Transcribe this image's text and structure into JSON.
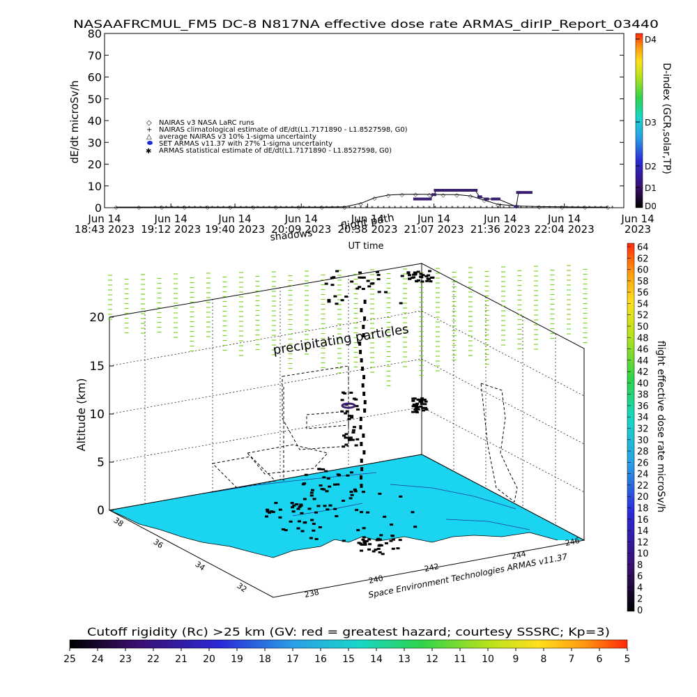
{
  "chart_data": [
    {
      "type": "line",
      "title": "NASAAFRCMUL_FM5 DC-8   N817NA effective dose rate ARMAS_dirIP_Report_03440",
      "xlabel": "UT time",
      "ylabel": "dE/dt microSv/h",
      "ylim": [
        0,
        80
      ],
      "yticks": [
        "0",
        "10",
        "20",
        "30",
        "40",
        "50",
        "60",
        "70",
        "80"
      ],
      "xtick_lines": [
        [
          "Jun 14",
          "18:43 2023"
        ],
        [
          "Jun 14",
          "19:12 2023"
        ],
        [
          "Jun 14",
          "19:40 2023"
        ],
        [
          "Jun 14",
          "20:09 2023"
        ],
        [
          "Jun 14",
          "20:38 2023"
        ],
        [
          "Jun 14",
          "21:07 2023"
        ],
        [
          "Jun 14",
          "21:36 2023"
        ],
        [
          "Jun 14",
          "22:04 2023"
        ],
        [
          "Jun 14",
          "2023"
        ]
      ],
      "xticks_minutes": [
        0,
        29,
        57,
        86,
        115,
        144,
        173,
        201
      ],
      "x_range_minutes": [
        0,
        227
      ],
      "right_axis_label": "D-index (GCR,solar,TP)",
      "right_axis_ticks": [
        "D4",
        "D3",
        "D2",
        "D1",
        "D0"
      ],
      "legend": [
        "NAIRAS v3 NASA LaRC runs",
        "NAIRAS climatological estimate of dE/dt(L1.7171890 - L1.8527598, G0)",
        "average NAIRAS v3 10% 1-sigma uncertainty",
        "SET ARMAS v11.37 with 27% 1-sigma uncertainty",
        "ARMAS statistical estimate of dE/dt(L1.7171890 - L1.8527598, G0)"
      ],
      "series": [
        {
          "name": "NAIRAS v3 NASA LaRC runs",
          "x": [
            5,
            15,
            25,
            35,
            45,
            55,
            65,
            75,
            85,
            95,
            105,
            112,
            118,
            124,
            130,
            136,
            142,
            148,
            154,
            160,
            166,
            172,
            180,
            190,
            200,
            210,
            220
          ],
          "y": [
            0.3,
            0.3,
            0.3,
            0.3,
            0.3,
            0.3,
            0.3,
            0.3,
            0.3,
            0.3,
            0.4,
            2.0,
            4.5,
            5.8,
            6.1,
            6.2,
            6.1,
            6.0,
            6.0,
            5.4,
            3.5,
            1.5,
            0.8,
            0.5,
            0.4,
            0.3,
            0.3
          ]
        },
        {
          "name": "SET ARMAS v11.37 with 27% 1-sigma uncertainty",
          "x": [
            136,
            138,
            140,
            142,
            144,
            145,
            146,
            148,
            150,
            152,
            154,
            156,
            158,
            160,
            162,
            164,
            167,
            170,
            172,
            180,
            181,
            182,
            184,
            186
          ],
          "y": [
            4.0,
            4.0,
            4.0,
            4.0,
            6.0,
            8.0,
            8.0,
            8.0,
            8.0,
            8.0,
            8.0,
            8.0,
            8.0,
            8.0,
            8.0,
            5.0,
            4.0,
            4.0,
            4.0,
            0.5,
            7.0,
            7.0,
            7.0,
            7.0
          ]
        }
      ]
    },
    {
      "type": "heatmap",
      "annotations": [
        "precipitating particles",
        "shadows",
        "flight path"
      ],
      "zlabel": "Altitude (km)",
      "zticks": [
        "0",
        "5",
        "10",
        "15",
        "20"
      ],
      "latitude_ticks": [
        "38",
        "36",
        "34",
        "32"
      ],
      "longitude_ticks": [
        "238",
        "240",
        "242",
        "244",
        "246"
      ],
      "footer": "Space Environment Technologies ARMAS v11.37",
      "vertical_colorbar": {
        "label": "flight effective dose rate microSv/h",
        "ticks": [
          "64",
          "62",
          "60",
          "58",
          "56",
          "54",
          "52",
          "50",
          "48",
          "46",
          "44",
          "42",
          "40",
          "38",
          "36",
          "34",
          "32",
          "30",
          "28",
          "26",
          "24",
          "22",
          "20",
          "18",
          "16",
          "14",
          "12",
          "10",
          "8",
          "6",
          "4",
          "2",
          "0"
        ]
      },
      "horizontal_colorbar": {
        "label": "Cutoff rigidity (Rc) >25 km (GV: red = greatest hazard; courtesy SSSRC; Kp=3)",
        "ticks": [
          "25",
          "24",
          "23",
          "22",
          "21",
          "20",
          "19",
          "18",
          "17",
          "16",
          "15",
          "14",
          "13",
          "12",
          "11",
          "10",
          "9",
          "8",
          "7",
          "6",
          "5"
        ]
      }
    }
  ],
  "colors": {
    "ground": "#1ad4f0",
    "precip": "#7fd126",
    "flight_marker": "#3a1e6e",
    "rainbow": [
      "#000000",
      "#3a0f6e",
      "#2a2ad6",
      "#2a9ee6",
      "#17d6c8",
      "#2ed34b",
      "#b6e21c",
      "#ffe01e",
      "#ff9a10",
      "#ff2a0a"
    ]
  }
}
